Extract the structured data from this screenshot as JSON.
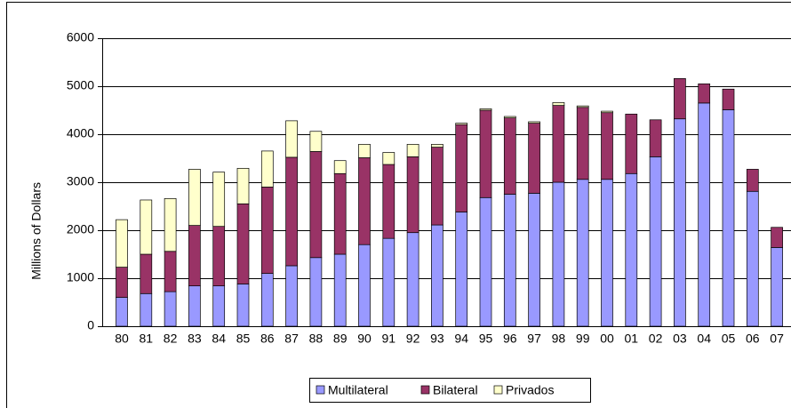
{
  "chart_data": {
    "type": "stacked-bar",
    "y_label": "Millions of Dollars",
    "categories": [
      "80",
      "81",
      "82",
      "83",
      "84",
      "85",
      "86",
      "87",
      "88",
      "89",
      "90",
      "91",
      "92",
      "93",
      "94",
      "95",
      "96",
      "97",
      "98",
      "99",
      "00",
      "01",
      "02",
      "03",
      "04",
      "05",
      "06",
      "07"
    ],
    "series": [
      {
        "name": "Multilateral",
        "color": "#9999ff",
        "values": [
          600,
          680,
          720,
          840,
          840,
          880,
          1100,
          1260,
          1430,
          1500,
          1700,
          1830,
          1950,
          2110,
          2380,
          2680,
          2750,
          2770,
          3000,
          3060,
          3060,
          3180,
          3530,
          4320,
          4650,
          4510,
          2810,
          1640
        ]
      },
      {
        "name": "Bilateral",
        "color": "#993366",
        "values": [
          630,
          820,
          840,
          1260,
          1240,
          1670,
          1800,
          2260,
          2210,
          1680,
          1810,
          1540,
          1580,
          1620,
          1820,
          1820,
          1590,
          1460,
          1600,
          1500,
          1390,
          1240,
          770,
          840,
          400,
          430,
          460,
          420
        ]
      },
      {
        "name": "Privados",
        "color": "#ffffcc",
        "values": [
          990,
          1130,
          1100,
          1170,
          1130,
          740,
          750,
          760,
          420,
          270,
          280,
          250,
          260,
          60,
          30,
          30,
          30,
          30,
          60,
          30,
          30,
          0,
          0,
          0,
          0,
          0,
          0,
          0
        ]
      }
    ],
    "ylim": [
      0,
      6000
    ],
    "yticks": [
      0,
      1000,
      2000,
      3000,
      4000,
      5000,
      6000
    ],
    "grid": true,
    "legend": "bottom"
  }
}
